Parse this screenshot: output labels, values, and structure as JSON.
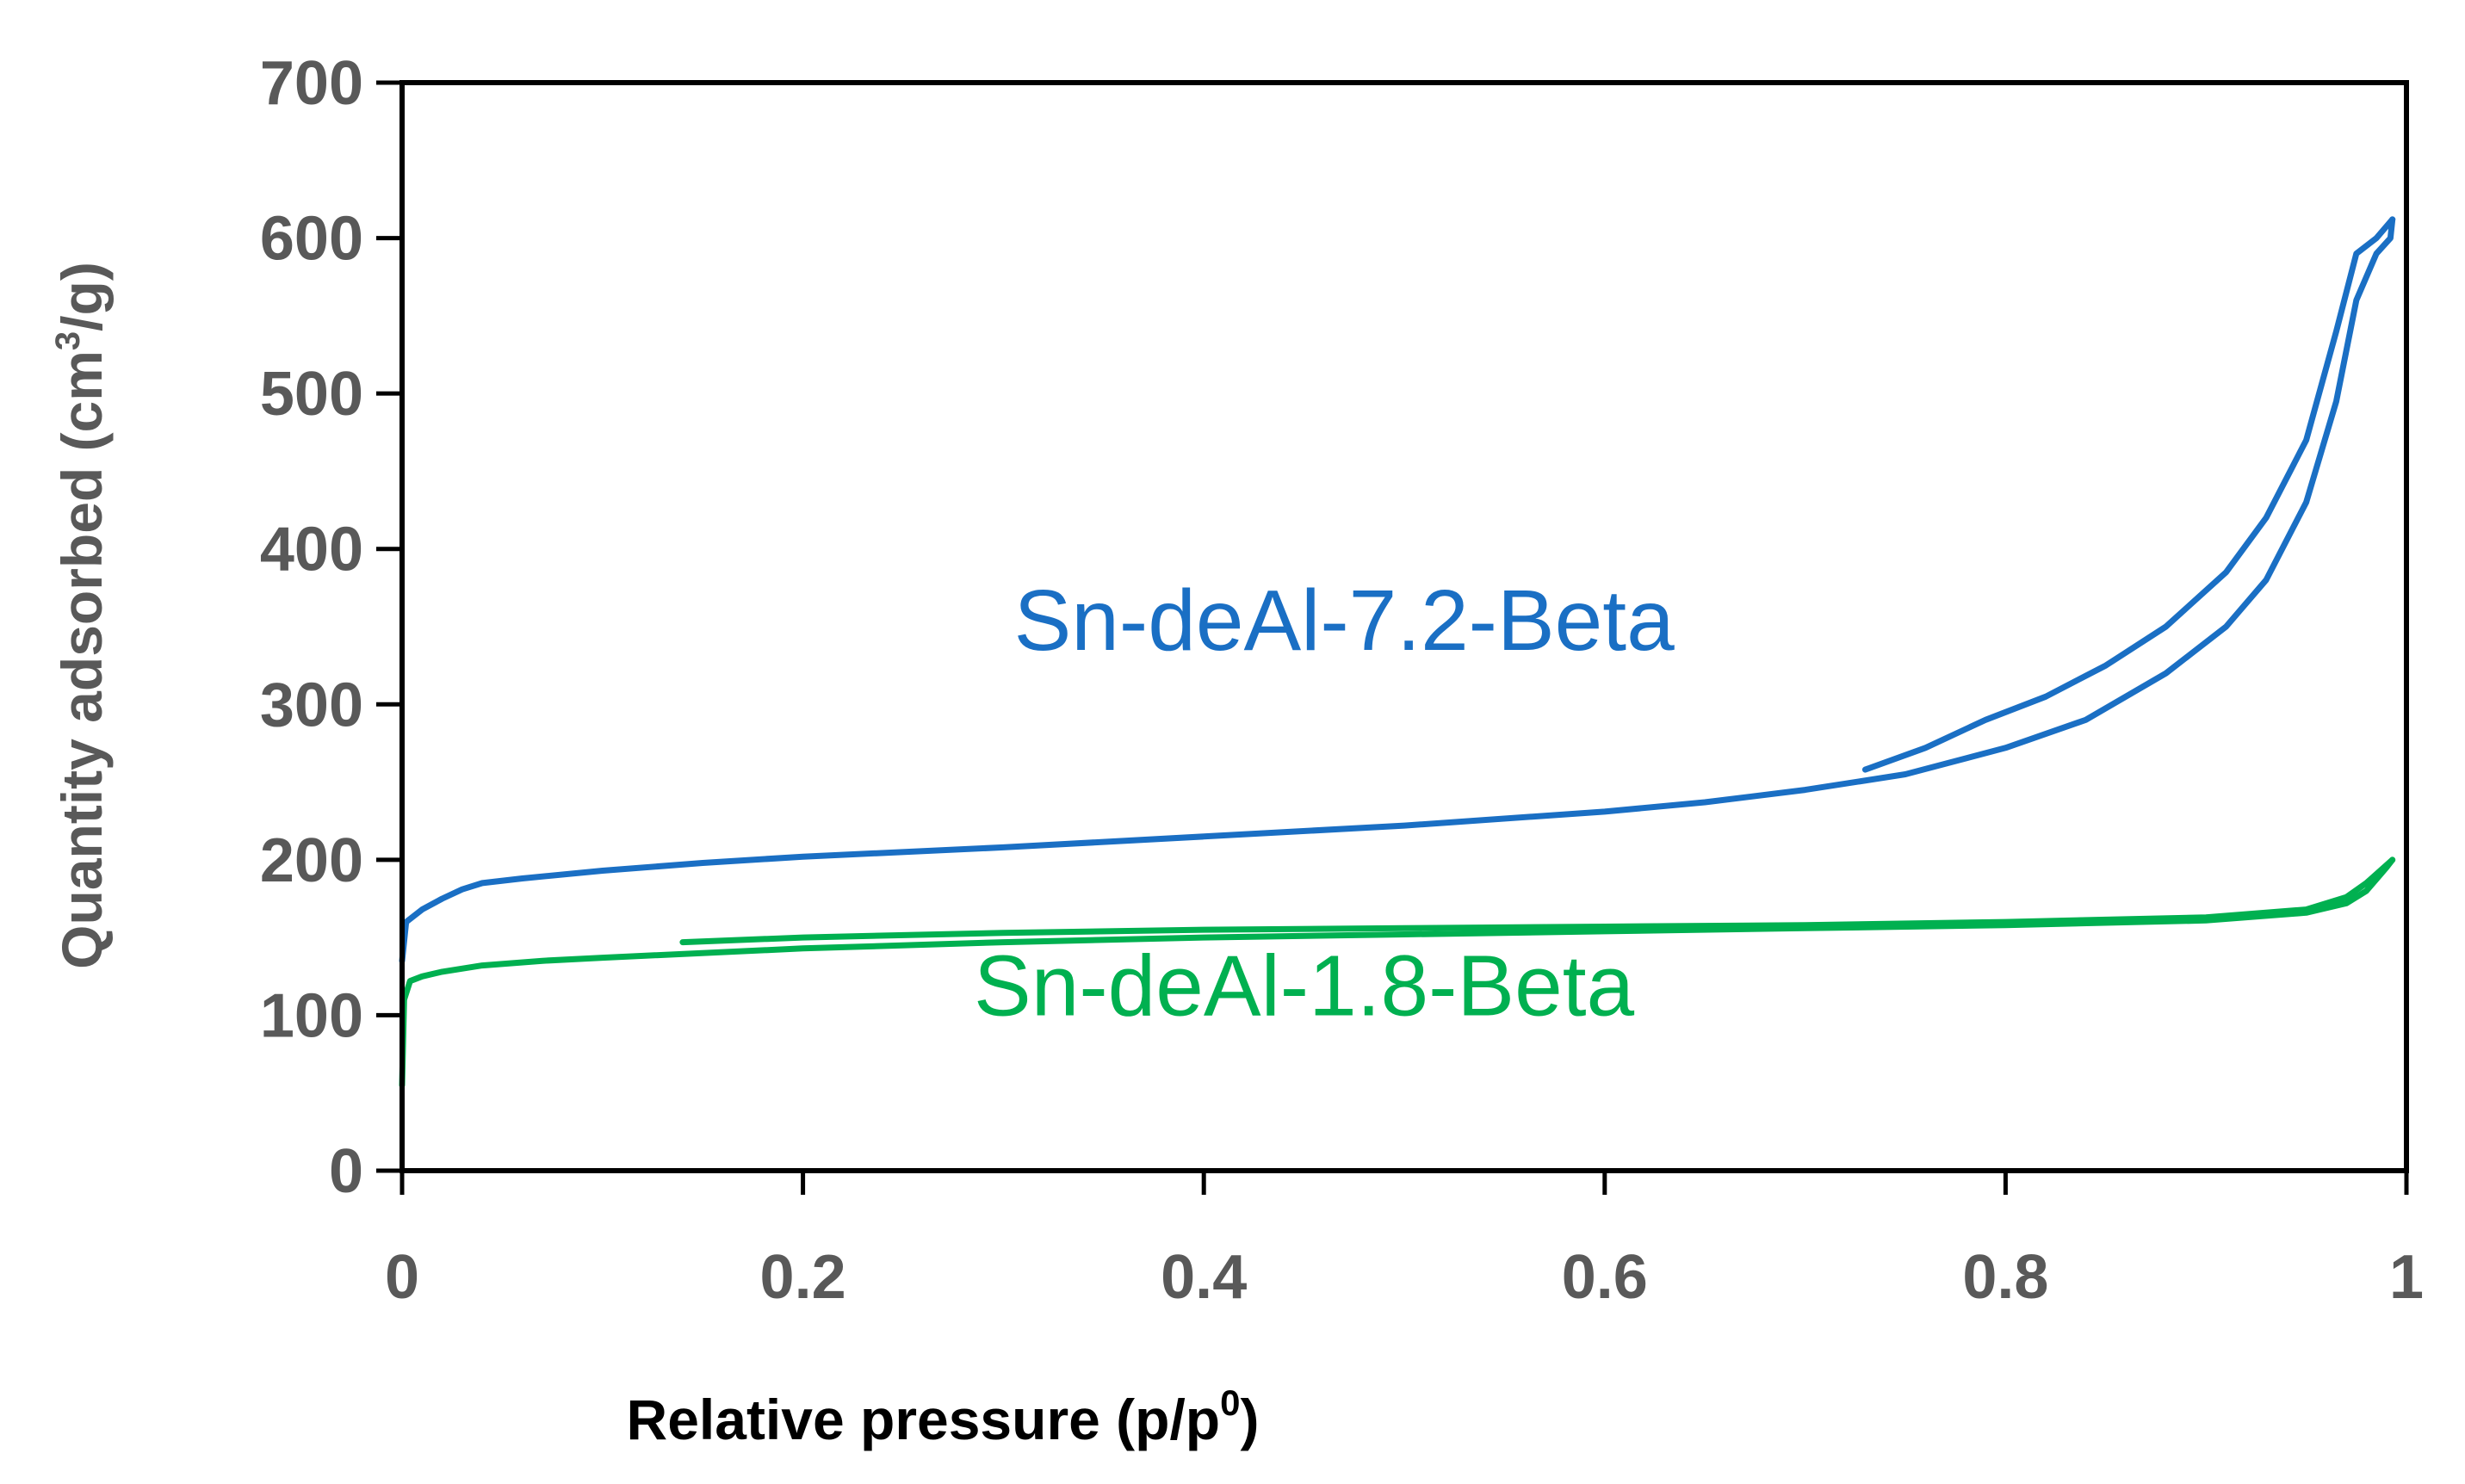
{
  "chart_data": {
    "type": "line",
    "title": "",
    "xlabel": "Relative pressure (p/p",
    "xlabel_sup": "0",
    "xlabel_end": ")",
    "ylabel": "Quantity adsorbed (cm",
    "ylabel_sup": "3",
    "ylabel_end": "/g)",
    "xlim": [
      0,
      1
    ],
    "ylim": [
      0,
      700
    ],
    "xticks": [
      0,
      0.2,
      0.4,
      0.6,
      0.8,
      1
    ],
    "xtick_labels": [
      "0",
      "0.2",
      "0.4",
      "0.6",
      "0.8",
      "1"
    ],
    "yticks": [
      0,
      100,
      200,
      300,
      400,
      500,
      600,
      700
    ],
    "ytick_labels": [
      "0",
      "100",
      "200",
      "300",
      "400",
      "500",
      "600",
      "700"
    ],
    "grid": false,
    "legend": "inline labels",
    "series": [
      {
        "name": "Sn-deAl-7.2-Beta",
        "color": "#1a6fc4",
        "adsorption": [
          [
            0.0,
            135
          ],
          [
            0.002,
            160
          ],
          [
            0.01,
            168
          ],
          [
            0.02,
            175
          ],
          [
            0.03,
            181
          ],
          [
            0.04,
            185
          ],
          [
            0.06,
            188
          ],
          [
            0.1,
            193
          ],
          [
            0.15,
            198
          ],
          [
            0.2,
            202
          ],
          [
            0.3,
            208
          ],
          [
            0.4,
            215
          ],
          [
            0.5,
            222
          ],
          [
            0.6,
            231
          ],
          [
            0.65,
            237
          ],
          [
            0.7,
            245
          ],
          [
            0.75,
            255
          ],
          [
            0.8,
            272
          ],
          [
            0.84,
            290
          ],
          [
            0.88,
            320
          ],
          [
            0.91,
            350
          ],
          [
            0.93,
            380
          ],
          [
            0.95,
            430
          ],
          [
            0.965,
            495
          ],
          [
            0.975,
            560
          ],
          [
            0.985,
            590
          ],
          [
            0.992,
            600
          ],
          [
            0.993,
            612
          ]
        ],
        "desorption": [
          [
            0.993,
            612
          ],
          [
            0.985,
            600
          ],
          [
            0.975,
            590
          ],
          [
            0.965,
            540
          ],
          [
            0.95,
            470
          ],
          [
            0.93,
            420
          ],
          [
            0.91,
            385
          ],
          [
            0.88,
            350
          ],
          [
            0.85,
            325
          ],
          [
            0.82,
            305
          ],
          [
            0.79,
            290
          ],
          [
            0.76,
            272
          ],
          [
            0.73,
            258
          ]
        ]
      },
      {
        "name": "Sn-deAl-1.8-Beta",
        "color": "#00b050",
        "adsorption": [
          [
            0.0,
            55
          ],
          [
            0.001,
            110
          ],
          [
            0.004,
            122
          ],
          [
            0.01,
            125
          ],
          [
            0.02,
            128
          ],
          [
            0.04,
            132
          ],
          [
            0.07,
            135
          ],
          [
            0.1,
            137
          ],
          [
            0.2,
            143
          ],
          [
            0.3,
            147
          ],
          [
            0.4,
            150
          ],
          [
            0.5,
            152
          ],
          [
            0.6,
            154
          ],
          [
            0.7,
            156
          ],
          [
            0.8,
            158
          ],
          [
            0.9,
            161
          ],
          [
            0.95,
            166
          ],
          [
            0.97,
            172
          ],
          [
            0.98,
            180
          ],
          [
            0.99,
            195
          ],
          [
            0.993,
            200
          ]
        ],
        "desorption": [
          [
            0.993,
            200
          ],
          [
            0.98,
            185
          ],
          [
            0.97,
            176
          ],
          [
            0.95,
            168
          ],
          [
            0.9,
            163
          ],
          [
            0.8,
            160
          ],
          [
            0.7,
            158
          ],
          [
            0.6,
            157
          ],
          [
            0.5,
            156
          ],
          [
            0.4,
            155
          ],
          [
            0.3,
            153
          ],
          [
            0.2,
            150
          ],
          [
            0.14,
            147
          ]
        ]
      }
    ],
    "annotations": [
      {
        "text": "Sn-deAl-7.2-Beta",
        "x": 0.47,
        "y": 335,
        "series": 0
      },
      {
        "text": "Sn-deAl-1.8-Beta",
        "x": 0.45,
        "y": 100,
        "series": 1
      }
    ]
  }
}
